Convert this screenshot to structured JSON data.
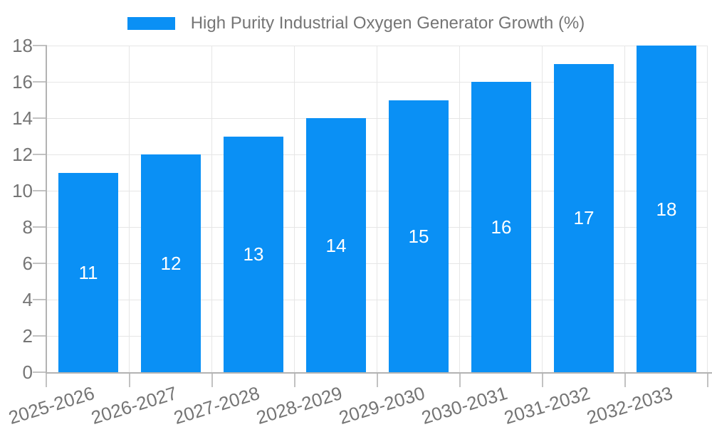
{
  "chart_data": {
    "type": "bar",
    "title": "",
    "legend": {
      "label": "High Purity Industrial Oxygen Generator Growth (%)",
      "position": "top-center"
    },
    "categories": [
      "2025-2026",
      "2026-2027",
      "2027-2028",
      "2028-2029",
      "2029-2030",
      "2030-2031",
      "2031-2032",
      "2032-2033"
    ],
    "values": [
      11,
      12,
      13,
      14,
      15,
      16,
      17,
      18
    ],
    "value_labels_inside_bars": [
      11,
      12,
      13,
      14,
      15,
      16,
      17,
      18
    ],
    "xlabel": "",
    "ylabel": "",
    "ylim": [
      0,
      18
    ],
    "yticks": [
      0,
      2,
      4,
      6,
      8,
      10,
      12,
      14,
      16,
      18
    ],
    "grid": "on",
    "x_label_rotation_deg": -17,
    "colors": {
      "bar": "#0a90f5",
      "grid": "#e6e6e6",
      "axis": "#b3b3b3",
      "tick": "#c2c2c2",
      "label_text": "#757575",
      "value_text": "#ffffff"
    }
  }
}
